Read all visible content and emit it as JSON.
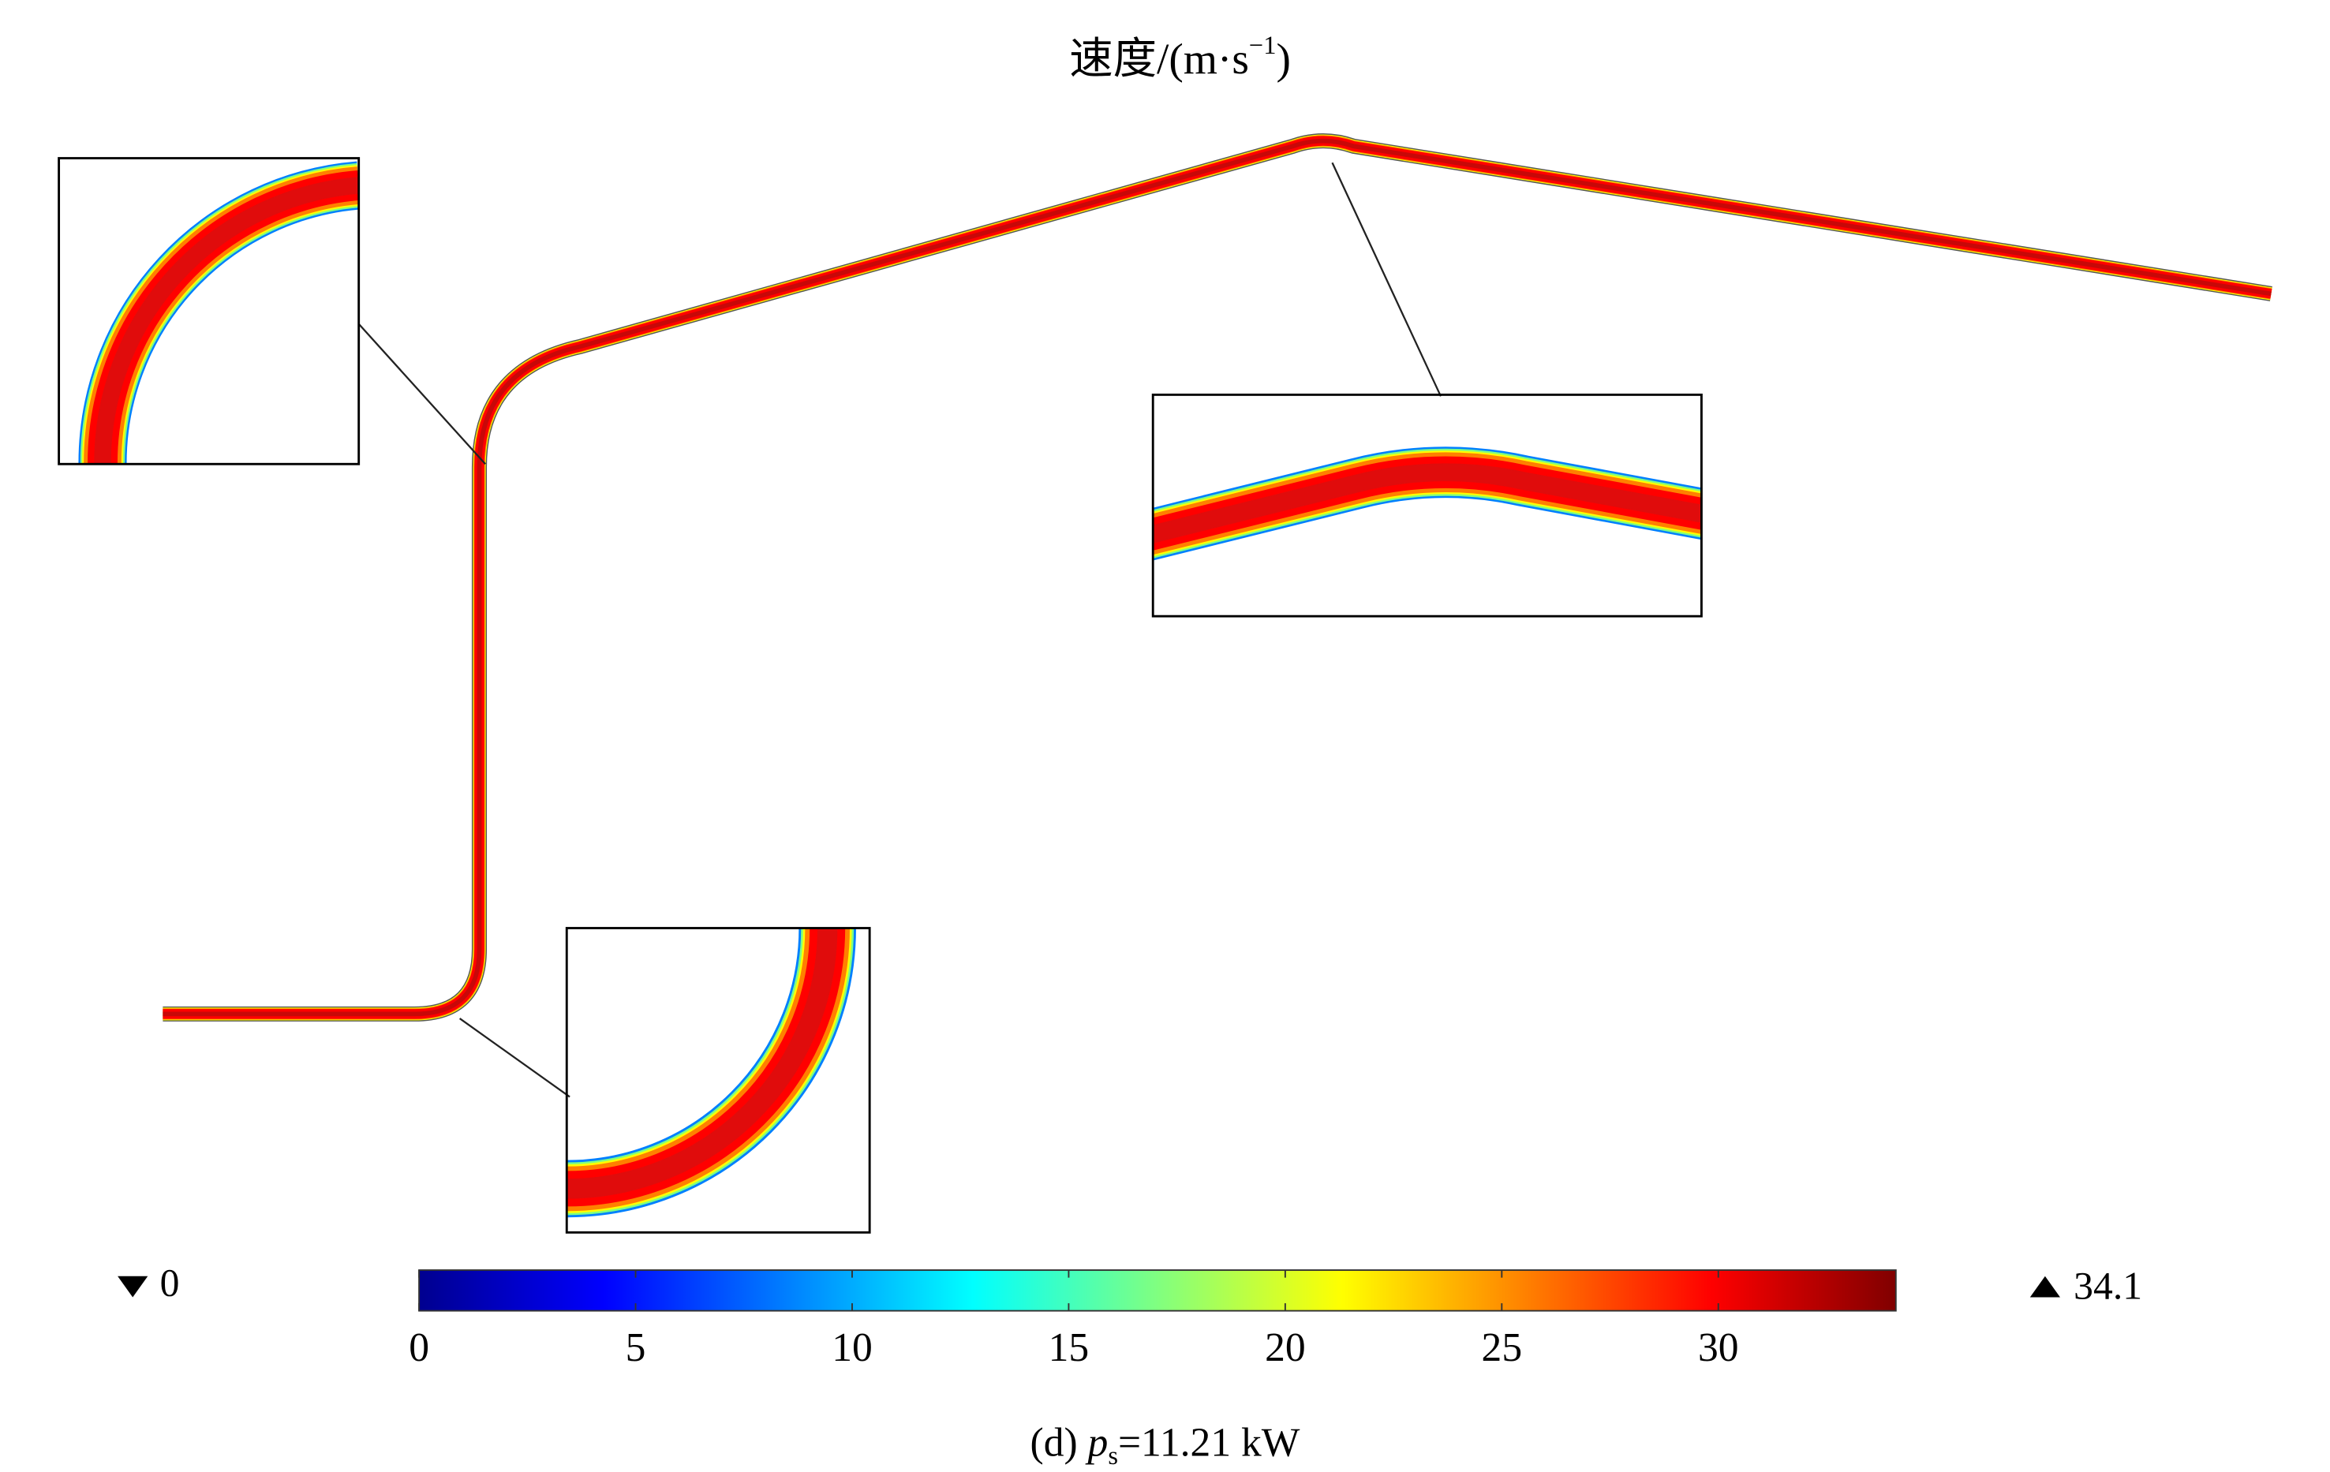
{
  "chart_data": {
    "type": "field",
    "title": "速度/(m·s",
    "title_superscript": "−1",
    "title_end": ")",
    "caption": {
      "label": "(d) ",
      "symbol": "p",
      "subscript": "s",
      "value": "=11.21 kW"
    },
    "colorbar": {
      "clim": [
        0,
        34.1
      ],
      "ticks": [
        0,
        5,
        10,
        15,
        20,
        25,
        30
      ],
      "colormap": [
        "#00008f",
        "#0000ff",
        "#0080ff",
        "#00ffff",
        "#80ff80",
        "#ffff00",
        "#ff8000",
        "#ff0000",
        "#800000"
      ]
    },
    "min": 0,
    "max": 34.1
  }
}
